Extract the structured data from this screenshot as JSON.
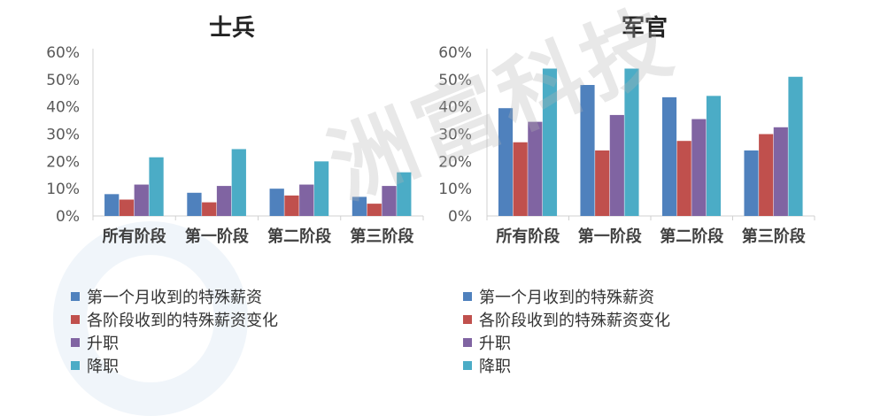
{
  "colors": {
    "axis": "#d0d0d0",
    "text": "#595959",
    "title": "#222222"
  },
  "watermark_text": "洲富科技",
  "chart_data": [
    {
      "type": "bar",
      "title": "士兵",
      "categories": [
        "所有阶段",
        "第一阶段",
        "第二阶段",
        "第三阶段"
      ],
      "ylim": [
        0,
        60
      ],
      "yticks": [
        "0%",
        "10%",
        "20%",
        "30%",
        "40%",
        "50%",
        "60%"
      ],
      "series": [
        {
          "name": "第一个月收到的特殊薪资",
          "color": "#4f81bd",
          "values": [
            8,
            8.5,
            10,
            7
          ]
        },
        {
          "name": "各阶段收到的特殊薪资变化",
          "color": "#c0504d",
          "values": [
            6,
            5,
            7.5,
            4.5
          ]
        },
        {
          "name": "升职",
          "color": "#8064a2",
          "values": [
            11.5,
            11,
            11.5,
            11
          ]
        },
        {
          "name": "降职",
          "color": "#4bacc6",
          "values": [
            21.5,
            24.5,
            20,
            16
          ]
        }
      ],
      "legend": "bottom"
    },
    {
      "type": "bar",
      "title": "军官",
      "categories": [
        "所有阶段",
        "第一阶段",
        "第二阶段",
        "第三阶段"
      ],
      "ylim": [
        0,
        60
      ],
      "yticks": [
        "0%",
        "10%",
        "20%",
        "30%",
        "40%",
        "50%",
        "60%"
      ],
      "series": [
        {
          "name": "第一个月收到的特殊薪资",
          "color": "#4f81bd",
          "values": [
            39.5,
            48,
            43.5,
            24
          ]
        },
        {
          "name": "各阶段收到的特殊薪资变化",
          "color": "#c0504d",
          "values": [
            27,
            24,
            27.5,
            30
          ]
        },
        {
          "name": "升职",
          "color": "#8064a2",
          "values": [
            34.5,
            37,
            35.5,
            32.5
          ]
        },
        {
          "name": "降职",
          "color": "#4bacc6",
          "values": [
            54,
            54,
            44,
            51
          ]
        }
      ],
      "legend": "bottom"
    }
  ]
}
